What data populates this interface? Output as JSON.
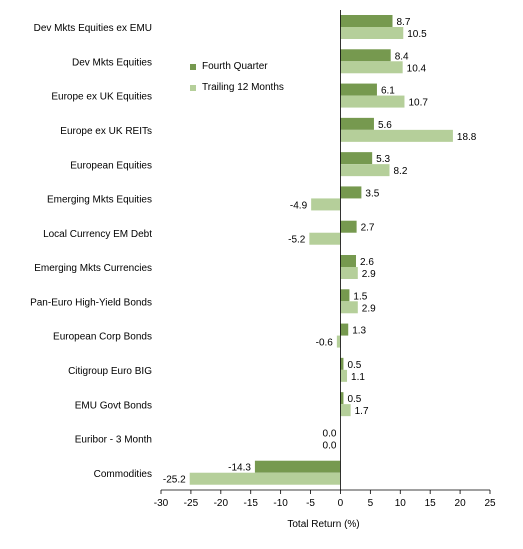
{
  "chart_data": {
    "type": "bar",
    "orientation": "horizontal",
    "categories": [
      "Dev Mkts Equities ex EMU",
      "Dev Mkts Equities",
      "Europe ex UK Equities",
      "Europe ex UK REITs",
      "European Equities",
      "Emerging Mkts Equities",
      "Local Currency EM Debt",
      "Emerging Mkts Currencies",
      "Pan-Euro High-Yield Bonds",
      "European Corp Bonds",
      "Citigroup Euro BIG",
      "EMU Govt Bonds",
      "Euribor - 3 Month",
      "Commodities"
    ],
    "series": [
      {
        "name": "Fourth Quarter",
        "color": "#76994f",
        "values": [
          8.7,
          8.4,
          6.1,
          5.6,
          5.3,
          3.5,
          2.7,
          2.6,
          1.5,
          1.3,
          0.5,
          0.5,
          0.0,
          -14.3
        ]
      },
      {
        "name": "Trailing 12 Months",
        "color": "#b5cf9a",
        "values": [
          10.5,
          10.4,
          10.7,
          18.8,
          8.2,
          -4.9,
          -5.2,
          2.9,
          2.9,
          -0.6,
          1.1,
          1.7,
          0.0,
          -25.2
        ]
      }
    ],
    "data_labels": {
      "Fourth Quarter": [
        "8.7",
        "8.4",
        "6.1",
        "5.6",
        "5.3",
        "3.5",
        "2.7",
        "2.6",
        "1.5",
        "1.3",
        "0.5",
        "0.5",
        "0.0",
        "-14.3"
      ],
      "Trailing 12 Months": [
        "10.5",
        "10.4",
        "10.7",
        "18.8",
        "8.2",
        "-4.9",
        "-5.2",
        "2.9",
        "2.9",
        "-0.6",
        "1.1",
        "1.7",
        "0.0",
        "-25.2"
      ]
    },
    "xlabel": "Total Return (%)",
    "xlim": [
      -30,
      25
    ],
    "xticks": [
      -30,
      -25,
      -20,
      -15,
      -10,
      -5,
      0,
      5,
      10,
      15,
      20,
      25
    ],
    "grid": false,
    "legend_position": "top-center"
  }
}
